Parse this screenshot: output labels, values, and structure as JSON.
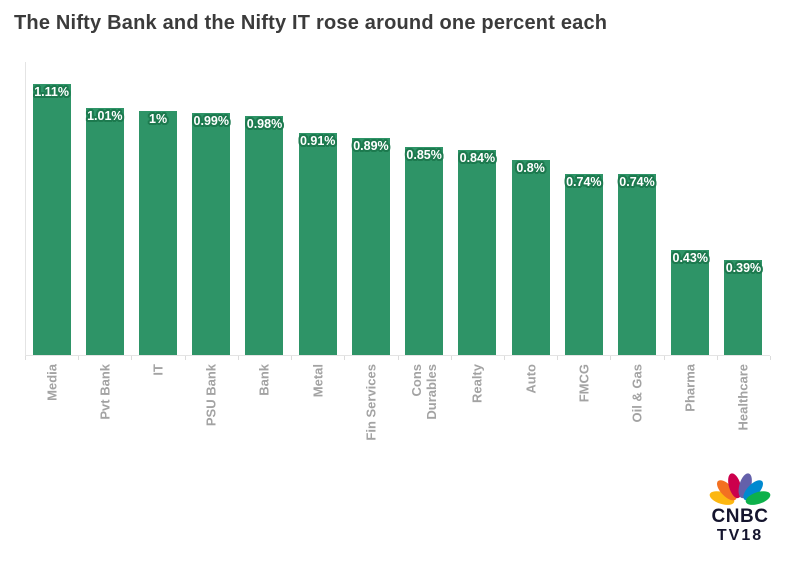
{
  "title": "The Nifty Bank and the Nifty IT rose around one percent each",
  "chart_data": {
    "type": "bar",
    "title": "The Nifty Bank and the Nifty IT rose around one percent each",
    "categories": [
      "Media",
      "Pvt Bank",
      "IT",
      "PSU Bank",
      "Bank",
      "Metal",
      "Fin Services",
      "Cons\nDurables",
      "Realty",
      "Auto",
      "FMCG",
      "Oil & Gas",
      "Pharma",
      "Healthcare"
    ],
    "values": [
      1.11,
      1.01,
      1.0,
      0.99,
      0.98,
      0.91,
      0.89,
      0.85,
      0.84,
      0.8,
      0.74,
      0.74,
      0.43,
      0.39
    ],
    "value_labels": [
      "1.11%",
      "1.01%",
      "1%",
      "0.99%",
      "0.98%",
      "0.91%",
      "0.89%",
      "0.85%",
      "0.84%",
      "0.8%",
      "0.74%",
      "0.74%",
      "0.43%",
      "0.39%"
    ],
    "xlabel": "",
    "ylabel": "",
    "ylim": [
      0,
      1.2
    ],
    "grid": false,
    "legend": "none",
    "bar_color": "#2e9467",
    "value_label_color": "#ffffff",
    "value_label_outline_color": "#1d7a4f",
    "tick_label_color": "#a3a3a3",
    "axis_line_color": "#e4e4e4",
    "tick_label_rotation_deg": 90
  },
  "branding": {
    "logo_line1": "CNBC",
    "logo_line2": "TV18",
    "peacock_colors": [
      "#FCB711",
      "#F37021",
      "#CC004C",
      "#6460AA",
      "#0089D0",
      "#0DB14B"
    ]
  }
}
